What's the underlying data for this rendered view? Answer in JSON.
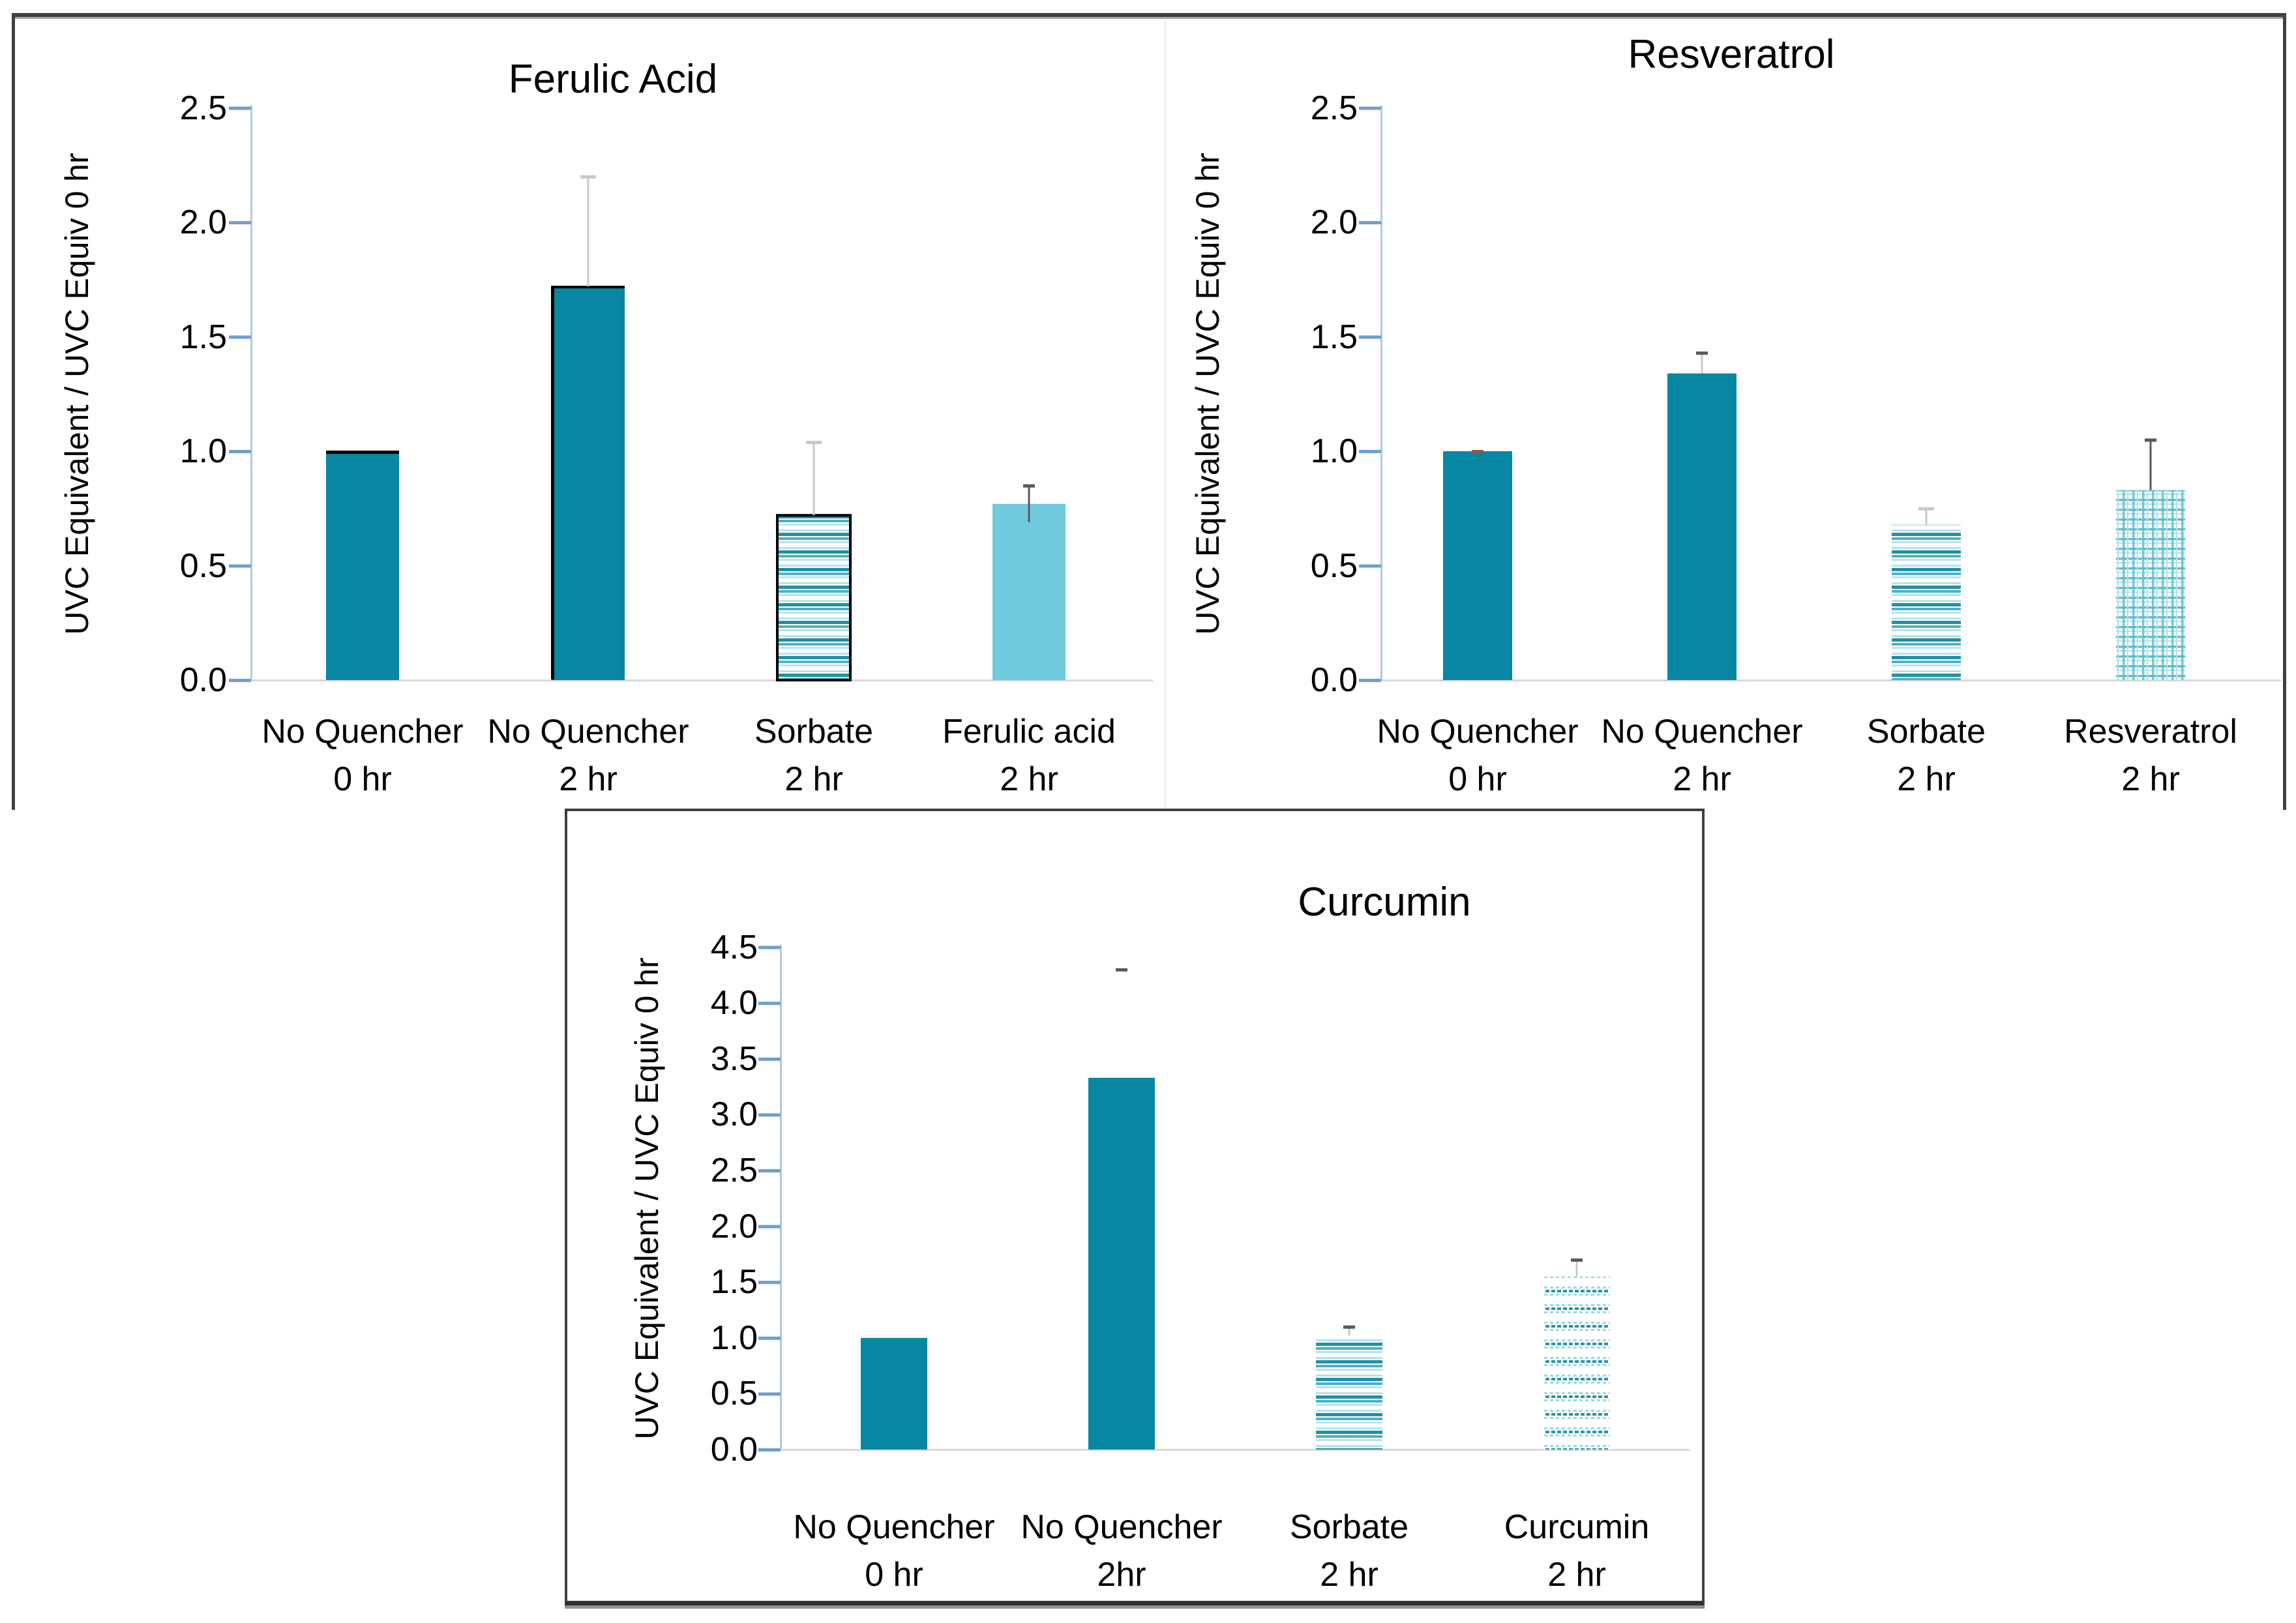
{
  "figure": {
    "background": "#ffffff",
    "outer_border_color": "#404040",
    "box_shadow_color": "#909090",
    "panel_separator_color": "#ebebeb"
  },
  "colors": {
    "solid_bar": "#0787a2",
    "light_blue_bar": "#6ec9dd",
    "stripe_dark": "#1e91a8",
    "stripe_mid": "#4fb0c2",
    "stripe_light": "#b8e2ea",
    "plaid_main": "#5fbecd",
    "plaid_light": "#b3e1e8",
    "dots_dark": "#2495ab",
    "dots_light": "#9ed8e2",
    "axis_line": "#adc9e9",
    "axis_tick": "#6f9ed2",
    "baseline": "#d9d9d9",
    "whisker_light": "#c8c8c8",
    "whisker_dark": "#595959",
    "cap_red": "#8b5a4e",
    "outline_black": "#000000"
  },
  "chart_data": [
    {
      "type": "bar",
      "title": "Ferulic Acid",
      "ylabel": "UVC Equivalent / UVC Equiv 0 hr",
      "ylim": [
        0.0,
        2.5
      ],
      "ytick_step": 0.5,
      "ytick_labels": [
        "0.0",
        "0.5",
        "1.0",
        "1.5",
        "2.0",
        "2.5"
      ],
      "grid": false,
      "legend": null,
      "categories": [
        [
          "No Quencher",
          "0 hr"
        ],
        [
          "No Quencher",
          "2 hr"
        ],
        [
          "Sorbate",
          "2 hr"
        ],
        [
          "Ferulic acid",
          "2 hr"
        ]
      ],
      "values": [
        1.0,
        1.72,
        0.72,
        0.77
      ],
      "bar_styles": [
        "solid_black_top",
        "solid_black_edge",
        "stripes_outlined",
        "light_blue"
      ],
      "error_bars": [
        null,
        {
          "from": 1.72,
          "to": 2.2,
          "line": "light",
          "cap": "light"
        },
        {
          "from": 0.72,
          "to": 1.04,
          "line": "light",
          "cap": "light"
        },
        {
          "from": 0.69,
          "to": 0.85,
          "line": "dark",
          "cap": "dark"
        }
      ]
    },
    {
      "type": "bar",
      "title": "Resveratrol",
      "ylabel": "UVC Equivalent / UVC Equiv 0 hr",
      "ylim": [
        0.0,
        2.5
      ],
      "ytick_step": 0.5,
      "ytick_labels": [
        "0.0",
        "0.5",
        "1.0",
        "1.5",
        "2.0",
        "2.5"
      ],
      "grid": false,
      "legend": null,
      "categories": [
        [
          "No Quencher",
          "0 hr"
        ],
        [
          "No Quencher",
          "2 hr"
        ],
        [
          "Sorbate",
          "2 hr"
        ],
        [
          "Resveratrol",
          "2 hr"
        ]
      ],
      "values": [
        1.0,
        1.34,
        0.68,
        0.83
      ],
      "bar_styles": [
        "solid",
        "solid",
        "stripes",
        "plaid"
      ],
      "error_bars": [
        {
          "from": 1.0,
          "to": 1.0,
          "line": null,
          "cap": "red"
        },
        {
          "from": 1.34,
          "to": 1.43,
          "line": "light",
          "cap": "dark"
        },
        {
          "from": 0.68,
          "to": 0.75,
          "line": "light",
          "cap": "light"
        },
        {
          "from": 0.83,
          "to": 1.05,
          "line": "dark",
          "cap": "dark"
        }
      ]
    },
    {
      "type": "bar",
      "title": "Curcumin",
      "ylabel": "UVC Equivalent / UVC Equiv 0 hr",
      "ylim": [
        0.0,
        4.5
      ],
      "ytick_step": 0.5,
      "ytick_labels": [
        "0.0",
        "0.5",
        "1.0",
        "1.5",
        "2.0",
        "2.5",
        "3.0",
        "3.5",
        "4.0",
        "4.5"
      ],
      "grid": false,
      "legend": null,
      "categories": [
        [
          "No Quencher",
          "0 hr"
        ],
        [
          "No Quencher",
          "2hr"
        ],
        [
          "Sorbate",
          "2 hr"
        ],
        [
          "Curcumin",
          "2 hr"
        ]
      ],
      "values": [
        1.0,
        3.33,
        1.02,
        1.55
      ],
      "bar_styles": [
        "solid",
        "solid",
        "stripes",
        "dots"
      ],
      "error_bars": [
        null,
        {
          "from": 4.28,
          "to": 4.3,
          "line": null,
          "cap": "dark"
        },
        {
          "from": 1.02,
          "to": 1.1,
          "line": "light",
          "cap": "dark"
        },
        {
          "from": 1.55,
          "to": 1.7,
          "line": "light",
          "cap": "dark"
        }
      ]
    }
  ]
}
